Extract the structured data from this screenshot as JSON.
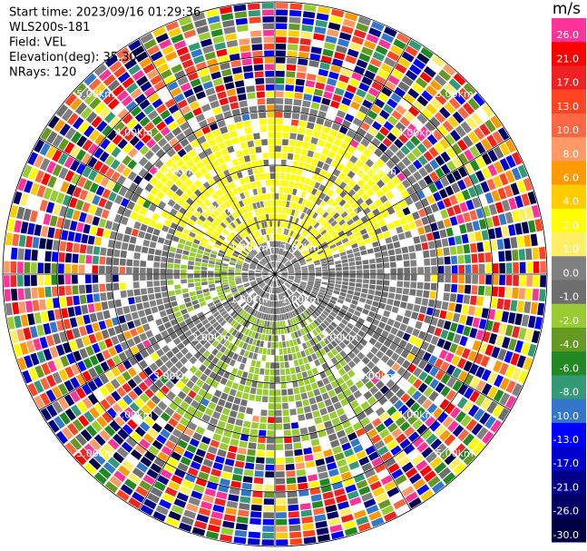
{
  "chart_data": {
    "type": "ppi",
    "header": [
      "Start time: 2023/09/16 01:29:36",
      "WLS200s-181",
      "Field: VEL",
      "Elevation(deg): 35.30",
      "NRays: 120"
    ],
    "unit": "m/s",
    "rlim": [
      0,
      5
    ],
    "rings": [
      {
        "value": 1,
        "label": "1.00km"
      },
      {
        "value": 2,
        "label": "2.00km"
      },
      {
        "value": 3,
        "label": "3.00km"
      },
      {
        "value": 4,
        "label": "4.00km"
      },
      {
        "value": 5,
        "label": "5.00km"
      }
    ],
    "cticks": [
      {
        "value": 26,
        "label": "26.0"
      },
      {
        "value": 21,
        "label": "21.0"
      },
      {
        "value": 17,
        "label": "17.0"
      },
      {
        "value": 13,
        "label": "13.0"
      },
      {
        "value": 10,
        "label": "10.0"
      },
      {
        "value": 8,
        "label": "8.0"
      },
      {
        "value": 6,
        "label": "6.0"
      },
      {
        "value": 4,
        "label": "4.0"
      },
      {
        "value": 2,
        "label": "2.0"
      },
      {
        "value": 1,
        "label": "1.0"
      },
      {
        "value": 0,
        "label": "0.0"
      },
      {
        "value": -1,
        "label": "-1.0"
      },
      {
        "value": -2,
        "label": "-2.0"
      },
      {
        "value": -4,
        "label": "-4.0"
      },
      {
        "value": -6,
        "label": "-6.0"
      },
      {
        "value": -8,
        "label": "-8.0"
      },
      {
        "value": -10,
        "label": "-10.0"
      },
      {
        "value": -13,
        "label": "-13.0"
      },
      {
        "value": -17,
        "label": "-17.0"
      },
      {
        "value": -21,
        "label": "-21.0"
      },
      {
        "value": -26,
        "label": "-26.0"
      },
      {
        "value": -30,
        "label": "-30.0"
      }
    ],
    "colors": [
      "#ff3399",
      "#ff0000",
      "#ee2222",
      "#ff4422",
      "#ff6644",
      "#ff9966",
      "#ff9900",
      "#ffcc00",
      "#ffff00",
      "#ffee66",
      "#808080",
      "#6e6e6e",
      "#99cc33",
      "#669922",
      "#228822",
      "#339977",
      "#3377cc",
      "#0000ff",
      "#0000cc",
      "#000088",
      "#000066",
      "#000044"
    ]
  }
}
